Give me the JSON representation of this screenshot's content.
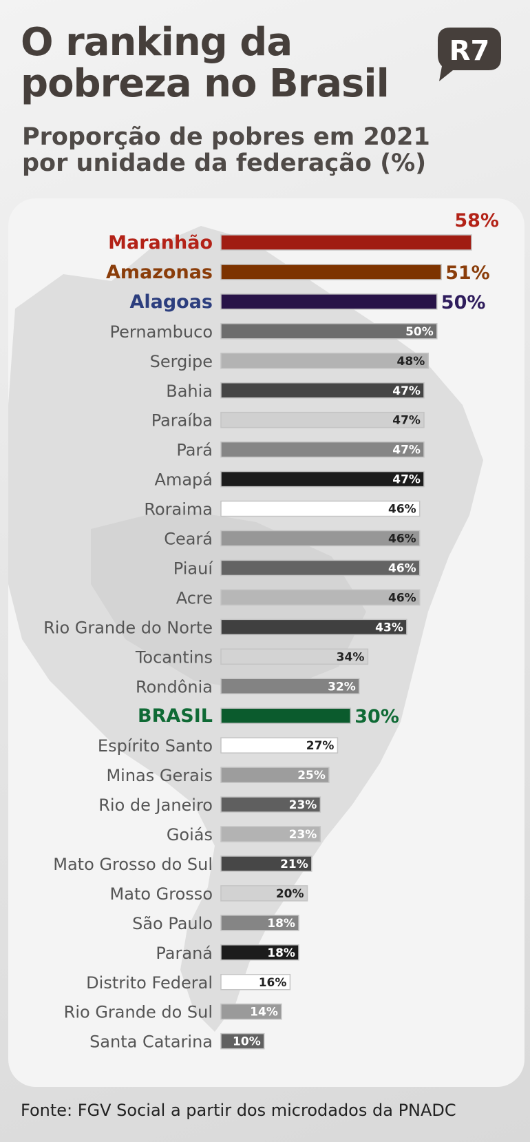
{
  "header": {
    "title": "O ranking da pobreza no Brasil",
    "subtitle": "Proporção de pobres em 2021 por unidade da federação (%)",
    "logo_text": "R7"
  },
  "footer": {
    "source": "Fonte: FGV Social a partir dos microdados da PNADC"
  },
  "chart_data": {
    "type": "bar",
    "orientation": "horizontal",
    "title": "O ranking da pobreza no Brasil",
    "subtitle": "Proporção de pobres em 2021 por unidade da federação (%)",
    "unit": "%",
    "categories": [
      "Maranhão",
      "Amazonas",
      "Alagoas",
      "Pernambuco",
      "Sergipe",
      "Bahia",
      "Paraíba",
      "Pará",
      "Amapá",
      "Roraima",
      "Ceará",
      "Piauí",
      "Acre",
      "Rio Grande do Norte",
      "Tocantins",
      "Rondônia",
      "BRASIL",
      "Espírito Santo",
      "Minas Gerais",
      "Rio de Janeiro",
      "Goiás",
      "Mato Grosso do Sul",
      "Mato Grosso",
      "São Paulo",
      "Paraná",
      "Distrito Federal",
      "Rio Grande do Sul",
      "Santa Catarina"
    ],
    "values": [
      58,
      51,
      50,
      50,
      48,
      47,
      47,
      47,
      47,
      46,
      46,
      46,
      46,
      43,
      34,
      32,
      30,
      27,
      25,
      23,
      23,
      21,
      20,
      18,
      18,
      16,
      14,
      10
    ],
    "labels": [
      "58%",
      "51%",
      "50%",
      "50%",
      "48%",
      "47%",
      "47%",
      "47%",
      "47%",
      "46%",
      "46%",
      "46%",
      "46%",
      "43%",
      "34%",
      "32%",
      "30%",
      "27%",
      "25%",
      "23%",
      "23%",
      "21%",
      "20%",
      "18%",
      "18%",
      "16%",
      "14%",
      "10%"
    ],
    "bar_colors": [
      "#a01c12",
      "#7d3300",
      "#281348",
      "#6d6d6d",
      "#b3b3b3",
      "#454545",
      "#d0d0d0",
      "#858585",
      "#1c1c1c",
      "#ffffff",
      "#979797",
      "#636363",
      "#b7b7b7",
      "#404040",
      "#d3d3d3",
      "#838383",
      "#0b5b2d",
      "#ffffff",
      "#9d9d9d",
      "#5f5f5f",
      "#b3b3b3",
      "#474747",
      "#d2d2d2",
      "#858585",
      "#1c1c1c",
      "#ffffff",
      "#9a9a9a",
      "#606060"
    ],
    "label_colors": [
      "#b32217",
      "#8a3d0a",
      "#2e1c5c",
      "#ffffff",
      "#222222",
      "#ffffff",
      "#222222",
      "#ffffff",
      "#ffffff",
      "#222222",
      "#222222",
      "#ffffff",
      "#222222",
      "#ffffff",
      "#222222",
      "#ffffff",
      "#0f6a35",
      "#222222",
      "#ffffff",
      "#ffffff",
      "#ffffff",
      "#ffffff",
      "#222222",
      "#ffffff",
      "#ffffff",
      "#222222",
      "#ffffff",
      "#ffffff"
    ],
    "highlighted": {
      "Maranhão": "#b32217",
      "Amazonas": "#8a3d0a",
      "Alagoas": "#2c3e7e",
      "BRASIL": "#0f6a35"
    },
    "xlim": [
      0,
      58
    ],
    "grid": false,
    "legend": "none"
  }
}
